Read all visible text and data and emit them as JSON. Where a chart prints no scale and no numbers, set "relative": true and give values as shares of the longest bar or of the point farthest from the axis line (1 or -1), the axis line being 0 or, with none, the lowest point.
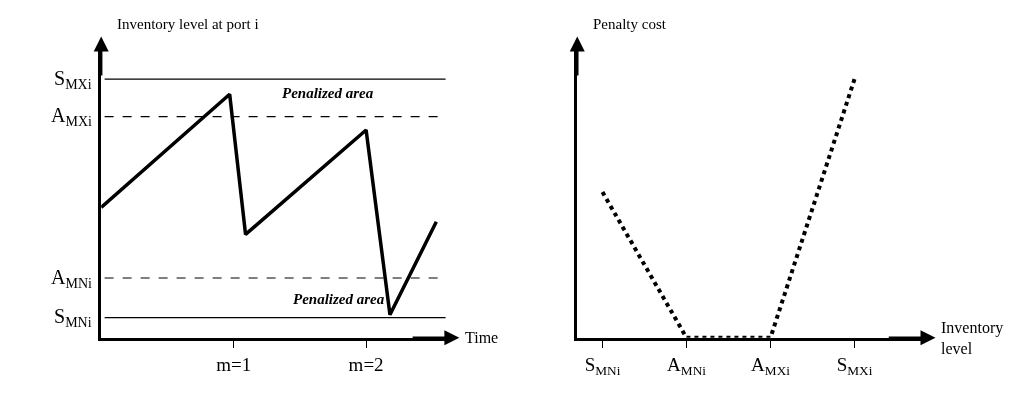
{
  "chart_data": [
    {
      "type": "line",
      "ylabel": "Inventory level at port i",
      "xlabel": "Time",
      "relative": true,
      "tick_labels": "x",
      "x": [
        0,
        0.97,
        1.09,
        2.0,
        2.18,
        2.53
      ],
      "xlim": [
        0,
        2.6
      ],
      "xticks": [
        {
          "value": 1,
          "label": "m=1"
        },
        {
          "value": 2,
          "label": "m=2"
        }
      ],
      "series": [
        {
          "color": "#000000",
          "values": [
            0.535,
            1.0,
            0.424,
            0.853,
            0.094,
            0.476
          ]
        }
      ],
      "line_style": "solid",
      "marker": "none",
      "ref_lines": [
        {
          "axis": "y",
          "value": 1.062,
          "label": "S$_{MXi}$",
          "line_style": "solid",
          "color": "#000000"
        },
        {
          "axis": "y",
          "value": 0.908,
          "label": "A$_{MXi}$",
          "line_style": "dashed",
          "color": "#000000"
        },
        {
          "axis": "y",
          "value": 0.245,
          "label": "A$_{MNi}$",
          "line_style": "dashed",
          "color": "#000000"
        },
        {
          "axis": "y",
          "value": 0.082,
          "label": "S$_{MNi}$",
          "line_style": "solid",
          "color": "#000000"
        }
      ],
      "annotations": [
        "Penalized area",
        "Penalized area"
      ]
    },
    {
      "type": "line",
      "ylabel": "Penalty cost",
      "xlabel": "Inventory level",
      "relative": true,
      "tick_labels": "x",
      "categories": [
        "S$_{MNi}$",
        "A$_{MNi}$",
        "A$_{MXi}$",
        "S$_{MXi}$"
      ],
      "series": [
        {
          "color": "#000000",
          "values": [
            0.563,
            0,
            0,
            1
          ]
        }
      ],
      "line_style": "dotted",
      "marker": "none"
    }
  ]
}
